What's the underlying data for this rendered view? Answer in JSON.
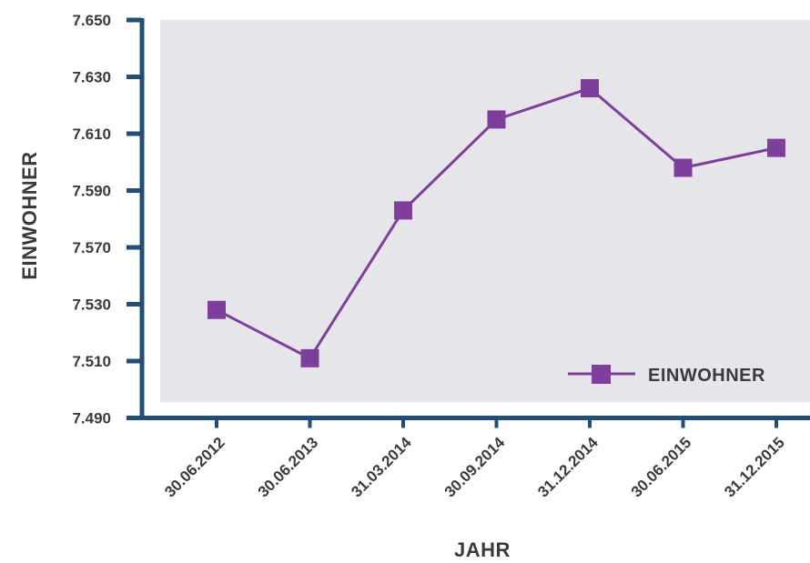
{
  "chart_data": {
    "type": "line",
    "categories": [
      "30.06.2012",
      "30.06.2013",
      "31.03.2014",
      "30.09.2014",
      "31.12.2014",
      "30.06.2015",
      "31.12.2015"
    ],
    "y_ticks": [
      "7.650",
      "7.630",
      "7.610",
      "7.590",
      "7.570",
      "7.530",
      "7.510",
      "7.490"
    ],
    "series": [
      {
        "name": "EINWOHNER",
        "values": [
          7528,
          7511,
          7583,
          7615,
          7626,
          7598,
          7605
        ]
      }
    ],
    "xlabel": "JAHR",
    "ylabel": "EINWOHNER",
    "legend": "bottom-right",
    "colors": {
      "line": "#7d3f9b",
      "marker": "#7d3f9b",
      "axis": "#1f4e79",
      "plot_background": "#e6e6ea"
    }
  }
}
